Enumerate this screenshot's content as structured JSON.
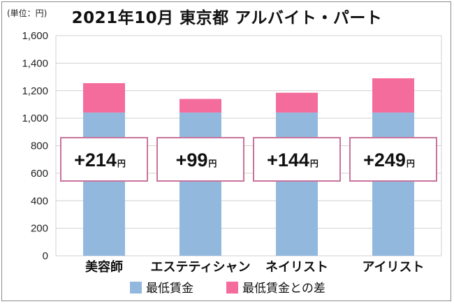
{
  "header": {
    "title": "2021年10月 東京都 アルバイト・パート",
    "unit": "(単位：円)"
  },
  "colors": {
    "min_wage": "#92b9dd",
    "diff": "#f46c9c",
    "box_border": "#c9739b",
    "grid": "#d0d0d0"
  },
  "chart_data": {
    "type": "bar",
    "stacked": true,
    "title": "2021年10月 東京都 アルバイト・パート",
    "ylim": [
      0,
      1600
    ],
    "y_ticks": [
      0,
      200,
      400,
      600,
      800,
      1000,
      1200,
      1400,
      1600
    ],
    "y_tick_labels": [
      "0",
      "200",
      "400",
      "600",
      "800",
      "1,000",
      "1,200",
      "1,400",
      "1,600"
    ],
    "grid": true,
    "legend_position": "bottom",
    "categories": [
      "美容師",
      "エステティシャン",
      "ネイリスト",
      "アイリスト"
    ],
    "series": [
      {
        "name": "最低賃金",
        "values": [
          1041,
          1041,
          1041,
          1041
        ]
      },
      {
        "name": "最低賃金との差",
        "values": [
          214,
          99,
          144,
          249
        ]
      }
    ],
    "annotations": [
      {
        "prefix": "+",
        "value": "214",
        "unit": "円"
      },
      {
        "prefix": "+",
        "value": "99",
        "unit": "円"
      },
      {
        "prefix": "+",
        "value": "144",
        "unit": "円"
      },
      {
        "prefix": "+",
        "value": "249",
        "unit": "円"
      }
    ]
  }
}
